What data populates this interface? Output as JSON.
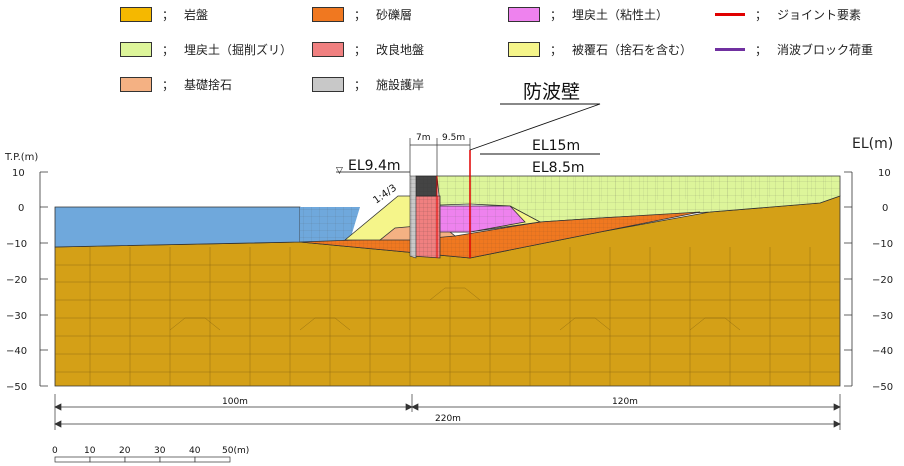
{
  "legend": [
    {
      "label": "岩盤",
      "color": "#F5B800",
      "kind": "box"
    },
    {
      "label": "砂礫層",
      "color": "#F07820",
      "kind": "box"
    },
    {
      "label": "埋戻土（粘性土）",
      "color": "#EE82EE",
      "kind": "box"
    },
    {
      "label": "ジョイント要素",
      "color": "#E00000",
      "kind": "line"
    },
    {
      "label": "埋戻土（掘削ズリ）",
      "color": "#DDF59A",
      "kind": "box"
    },
    {
      "label": "改良地盤",
      "color": "#F08080",
      "kind": "box"
    },
    {
      "label": "被覆石（捨石を含む）",
      "color": "#F5F58A",
      "kind": "box"
    },
    {
      "label": "消波ブロック荷重",
      "color": "#7030A0",
      "kind": "line"
    },
    {
      "label": "基礎捨石",
      "color": "#F4B183",
      "kind": "box"
    },
    {
      "label": "施設護岸",
      "color": "#C8C8C8",
      "kind": "box"
    }
  ],
  "legend_sep": "；",
  "annotations": {
    "wall_label": "防波壁",
    "el15": "EL15m",
    "el85": "EL8.5m",
    "el94": "EL9.4m",
    "dim7": "7m",
    "dim95": "9.5m",
    "slope": "1:4/3",
    "water_symbol": "▽"
  },
  "axes": {
    "left_title": "T.P.(m)",
    "right_title": "EL(m)",
    "ticks": [
      "10",
      "0",
      "−10",
      "−20",
      "−30",
      "−40",
      "−50"
    ]
  },
  "dimensions": {
    "d100": "100m",
    "d120": "120m",
    "d220": "220m"
  },
  "scale_bar": {
    "ticks": [
      "0",
      "10",
      "20",
      "30",
      "40",
      "50(m)"
    ]
  }
}
